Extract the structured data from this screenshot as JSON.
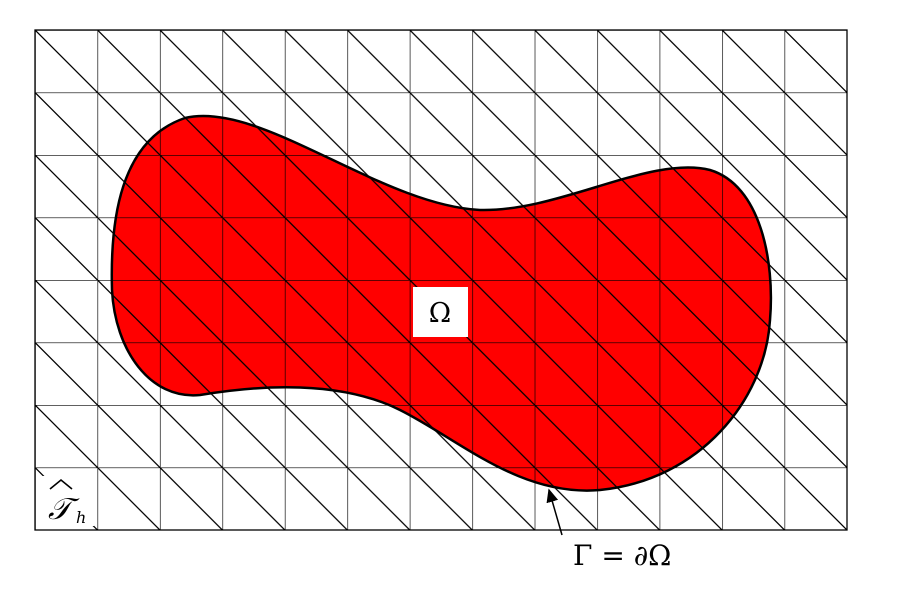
{
  "labels": {
    "domain": "Ω",
    "boundary": "Γ = ∂Ω",
    "mesh": "𝒯",
    "mesh_subscript": "h"
  }
}
